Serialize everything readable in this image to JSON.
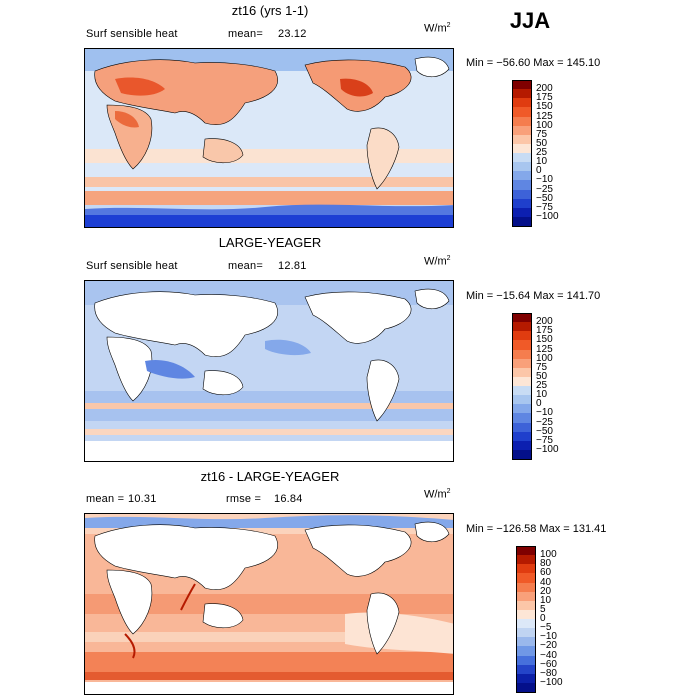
{
  "season": "JJA",
  "panels": [
    {
      "title": "zt16 (yrs 1-1)",
      "variable": "Surf sensible heat",
      "stat_label": "mean=",
      "stat_value": "23.12",
      "units": "W/m",
      "units_exp": "2",
      "min_label": "Min =",
      "min_value": "−56.60",
      "max_label": "Max =",
      "max_value": "145.10",
      "levels": [
        "200",
        "175",
        "150",
        "125",
        "100",
        "75",
        "50",
        "25",
        "10",
        "0",
        "−10",
        "−25",
        "−50",
        "−75",
        "−100"
      ],
      "colors": [
        "#7f0000",
        "#b51a00",
        "#e03c10",
        "#f05a28",
        "#f57d4e",
        "#f9a07a",
        "#fcc6a8",
        "#fde6d6",
        "#c8dcf4",
        "#a8c6ef",
        "#84a8ea",
        "#5f86e2",
        "#3d62d8",
        "#1f3fcc",
        "#0c1fb0",
        "#04108a"
      ]
    },
    {
      "title": "LARGE-YEAGER",
      "variable": "Surf sensible heat",
      "stat_label": "mean=",
      "stat_value": "12.81",
      "units": "W/m",
      "units_exp": "2",
      "min_label": "Min =",
      "min_value": "−15.64",
      "max_label": "Max =",
      "max_value": "141.70",
      "levels": [
        "200",
        "175",
        "150",
        "125",
        "100",
        "75",
        "50",
        "25",
        "10",
        "0",
        "−10",
        "−25",
        "−50",
        "−75",
        "−100"
      ],
      "colors": [
        "#7f0000",
        "#b51a00",
        "#e03c10",
        "#f05a28",
        "#f57d4e",
        "#f9a07a",
        "#fcc6a8",
        "#fde6d6",
        "#c8dcf4",
        "#a8c6ef",
        "#84a8ea",
        "#5f86e2",
        "#3d62d8",
        "#1f3fcc",
        "#0c1fb0",
        "#04108a"
      ]
    },
    {
      "title": "zt16 - LARGE-YEAGER",
      "variable": "",
      "stat_label": "mean =",
      "stat_value": "10.31",
      "stat2_label": "rmse =",
      "stat2_value": "16.84",
      "units": "W/m",
      "units_exp": "2",
      "min_label": "Min =",
      "min_value": "−126.58",
      "max_label": "Max =",
      "max_value": "131.41",
      "levels": [
        "100",
        "80",
        "60",
        "40",
        "20",
        "10",
        "5",
        "0",
        "−5",
        "−10",
        "−20",
        "−40",
        "−60",
        "−80",
        "−100"
      ],
      "colors": [
        "#7f0000",
        "#b51a00",
        "#e03c10",
        "#f05a28",
        "#f57d4e",
        "#f9a07a",
        "#fcc6a8",
        "#fde6d6",
        "#dce8f8",
        "#c0d4f2",
        "#9ab8ec",
        "#7098e6",
        "#4670dc",
        "#2444c8",
        "#0c20a8",
        "#04108a"
      ]
    }
  ]
}
